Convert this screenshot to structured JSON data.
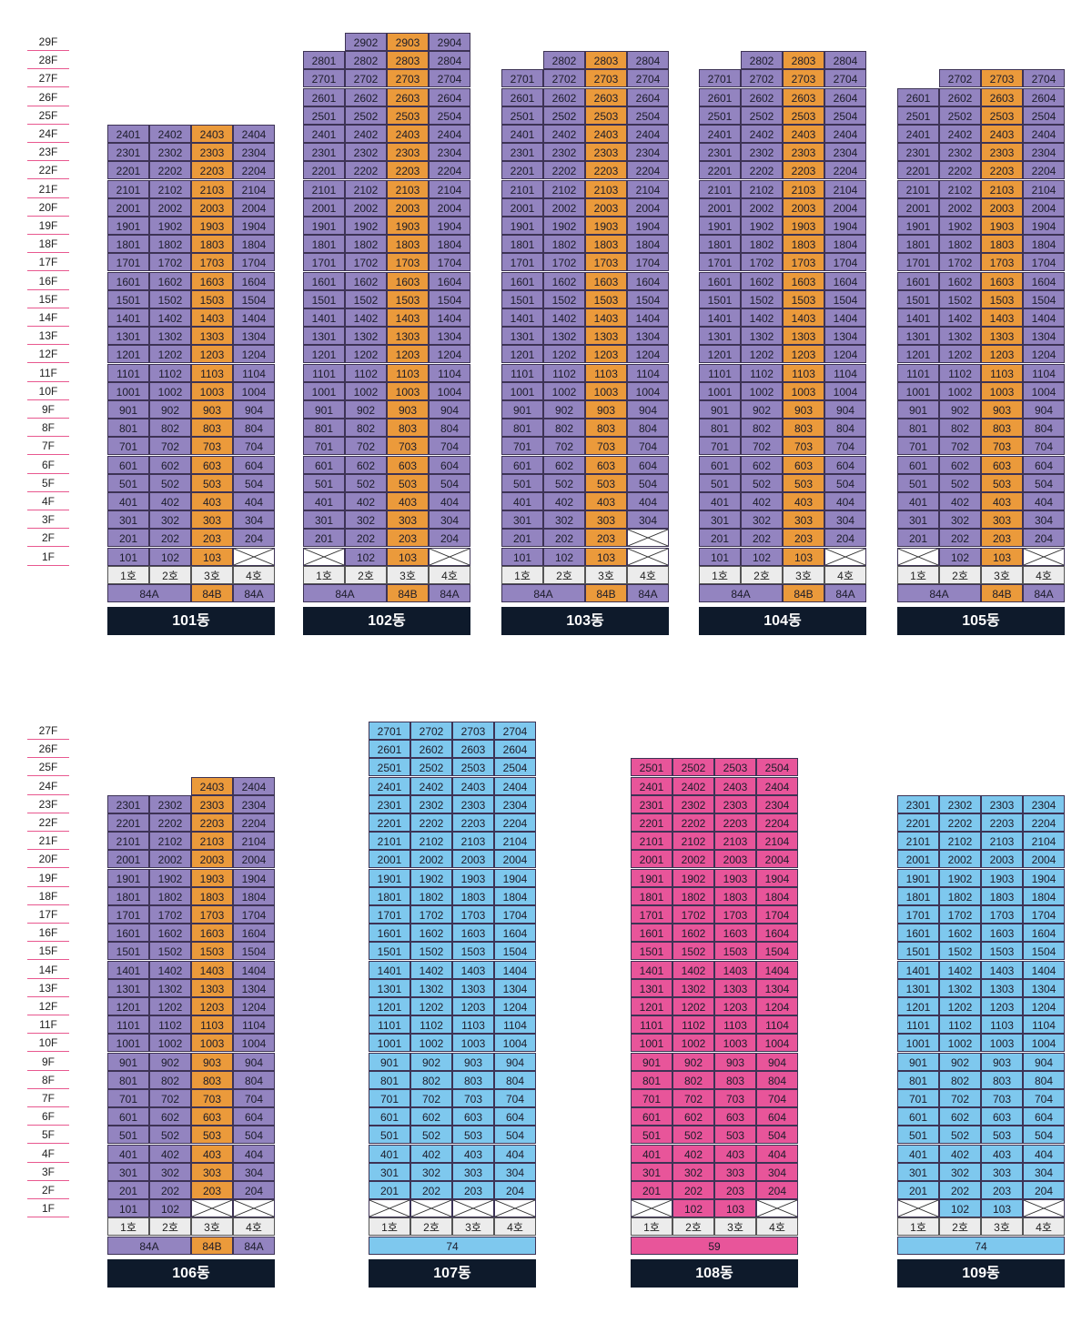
{
  "colors": {
    "84A": "#9384c0",
    "84B": "#eb9a3b",
    "74": "#7ec8ee",
    "59": "#e8559a",
    "empty": "#ffffff"
  },
  "ho_labels": [
    "1호",
    "2호",
    "3호",
    "4호"
  ],
  "rows": [
    {
      "floors": [
        "29F",
        "28F",
        "27F",
        "26F",
        "25F",
        "24F",
        "23F",
        "22F",
        "21F",
        "20F",
        "19F",
        "18F",
        "17F",
        "16F",
        "15F",
        "14F",
        "13F",
        "12F",
        "11F",
        "10F",
        "9F",
        "8F",
        "7F",
        "6F",
        "5F",
        "4F",
        "3F",
        "2F",
        "1F"
      ],
      "buildings": [
        {
          "name": "101동",
          "top_floor": 24,
          "type_cols": [
            "84A",
            "84A",
            "84B",
            "84A"
          ],
          "type_bar": [
            {
              "label": "84A",
              "span": 2,
              "type": "84A"
            },
            {
              "label": "84B",
              "span": 1,
              "type": "84B"
            },
            {
              "label": "84A",
              "span": 1,
              "type": "84A"
            }
          ],
          "top_units": [],
          "first_floor": [
            "101",
            "102",
            "103",
            ""
          ],
          "second_floor": [
            "201",
            "202",
            "203",
            "204"
          ]
        },
        {
          "name": "102동",
          "top_floor": 29,
          "type_cols": [
            "84A",
            "84A",
            "84B",
            "84A"
          ],
          "type_bar": [
            {
              "label": "84A",
              "span": 2,
              "type": "84A"
            },
            {
              "label": "84B",
              "span": 1,
              "type": "84B"
            },
            {
              "label": "84A",
              "span": 1,
              "type": "84A"
            }
          ],
          "top_units": [
            {
              "floor": 29,
              "units": [
                "",
                "2902",
                "2903",
                "2904"
              ]
            },
            {
              "floor": 28,
              "units": [
                "2801",
                "2802",
                "2803",
                "2804"
              ]
            }
          ],
          "first_floor": [
            "",
            "102",
            "103",
            ""
          ],
          "second_floor": [
            "201",
            "202",
            "203",
            "204"
          ]
        },
        {
          "name": "103동",
          "top_floor": 28,
          "type_cols": [
            "84A",
            "84A",
            "84B",
            "84A"
          ],
          "type_bar": [
            {
              "label": "84A",
              "span": 2,
              "type": "84A"
            },
            {
              "label": "84B",
              "span": 1,
              "type": "84B"
            },
            {
              "label": "84A",
              "span": 1,
              "type": "84A"
            }
          ],
          "top_units": [
            {
              "floor": 28,
              "units": [
                "",
                "2802",
                "2803",
                "2804"
              ]
            }
          ],
          "first_floor": [
            "101",
            "102",
            "103",
            ""
          ],
          "second_floor": [
            "201",
            "202",
            "203",
            ""
          ]
        },
        {
          "name": "104동",
          "top_floor": 28,
          "type_cols": [
            "84A",
            "84A",
            "84B",
            "84A"
          ],
          "type_bar": [
            {
              "label": "84A",
              "span": 2,
              "type": "84A"
            },
            {
              "label": "84B",
              "span": 1,
              "type": "84B"
            },
            {
              "label": "84A",
              "span": 1,
              "type": "84A"
            }
          ],
          "top_units": [
            {
              "floor": 28,
              "units": [
                "",
                "2802",
                "2803",
                "2804"
              ]
            }
          ],
          "first_floor": [
            "101",
            "102",
            "103",
            ""
          ],
          "second_floor": [
            "201",
            "202",
            "203",
            "204"
          ]
        },
        {
          "name": "105동",
          "top_floor": 27,
          "type_cols": [
            "84A",
            "84A",
            "84B",
            "84A"
          ],
          "type_bar": [
            {
              "label": "84A",
              "span": 2,
              "type": "84A"
            },
            {
              "label": "84B",
              "span": 1,
              "type": "84B"
            },
            {
              "label": "84A",
              "span": 1,
              "type": "84A"
            }
          ],
          "top_units": [
            {
              "floor": 27,
              "units": [
                "",
                "2702",
                "2703",
                "2704"
              ]
            }
          ],
          "first_floor": [
            "",
            "102",
            "103",
            ""
          ],
          "second_floor": [
            "201",
            "202",
            "203",
            "204"
          ]
        }
      ]
    },
    {
      "floors": [
        "27F",
        "26F",
        "25F",
        "24F",
        "23F",
        "22F",
        "21F",
        "20F",
        "19F",
        "18F",
        "17F",
        "16F",
        "15F",
        "14F",
        "13F",
        "12F",
        "11F",
        "10F",
        "9F",
        "8F",
        "7F",
        "6F",
        "5F",
        "4F",
        "3F",
        "2F",
        "1F"
      ],
      "buildings": [
        {
          "name": "106동",
          "top_floor": 24,
          "type_cols": [
            "84A",
            "84A",
            "84B",
            "84A"
          ],
          "type_bar": [
            {
              "label": "84A",
              "span": 2,
              "type": "84A"
            },
            {
              "label": "84B",
              "span": 1,
              "type": "84B"
            },
            {
              "label": "84A",
              "span": 1,
              "type": "84A"
            }
          ],
          "top_units": [
            {
              "floor": 24,
              "units": [
                "",
                "",
                "2403",
                "2404"
              ]
            }
          ],
          "first_floor": [
            "101",
            "102",
            "",
            ""
          ],
          "second_floor": [
            "201",
            "202",
            "203",
            "204"
          ]
        },
        {
          "name": "107동",
          "top_floor": 27,
          "type_cols": [
            "74",
            "74",
            "74",
            "74"
          ],
          "type_bar": [
            {
              "label": "74",
              "span": 4,
              "type": "74"
            }
          ],
          "top_units": [],
          "first_floor": [
            "",
            "",
            "",
            ""
          ],
          "second_floor": [
            "201",
            "202",
            "203",
            "204"
          ]
        },
        {
          "name": "108동",
          "top_floor": 25,
          "type_cols": [
            "59",
            "59",
            "59",
            "59"
          ],
          "type_bar": [
            {
              "label": "59",
              "span": 4,
              "type": "59"
            }
          ],
          "top_units": [],
          "first_floor": [
            "",
            "102",
            "103",
            ""
          ],
          "second_floor": [
            "201",
            "202",
            "203",
            "204"
          ]
        },
        {
          "name": "109동",
          "top_floor": 23,
          "type_cols": [
            "74",
            "74",
            "74",
            "74"
          ],
          "type_bar": [
            {
              "label": "74",
              "span": 4,
              "type": "74"
            }
          ],
          "top_units": [],
          "first_floor": [
            "",
            "102",
            "103",
            ""
          ],
          "second_floor": [
            "201",
            "202",
            "203",
            "204"
          ]
        }
      ]
    }
  ]
}
